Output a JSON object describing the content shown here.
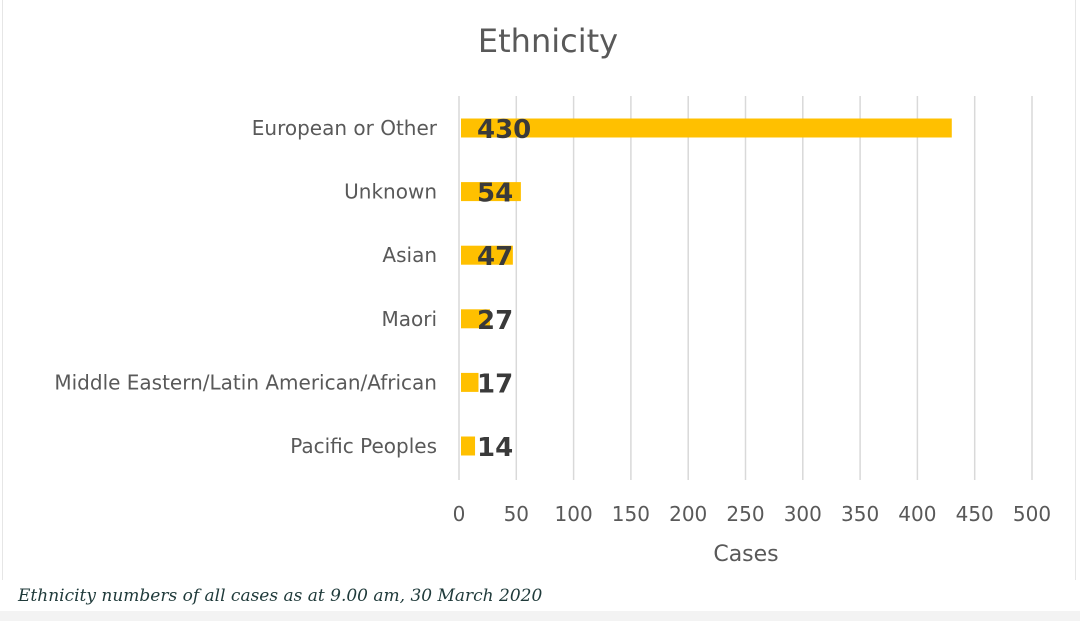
{
  "chart_data": {
    "type": "bar",
    "orientation": "horizontal",
    "title": "Ethnicity",
    "xlabel": "Cases",
    "ylabel": "",
    "categories": [
      "European or Other",
      "Unknown",
      "Asian",
      "Maori",
      "Middle Eastern/Latin American/African",
      "Pacific Peoples"
    ],
    "values": [
      430,
      54,
      47,
      27,
      17,
      14
    ],
    "xlim": [
      0,
      500
    ],
    "xticks": [
      0,
      50,
      100,
      150,
      200,
      250,
      300,
      350,
      400,
      450,
      500
    ],
    "grid": "vertical",
    "legend": "none",
    "bar_color": "#FFC000",
    "grid_color": "#d9d9d9",
    "label_color": "#3a3a3a"
  },
  "caption": "Ethnicity numbers of all cases as at 9.00 am, 30 March 2020"
}
